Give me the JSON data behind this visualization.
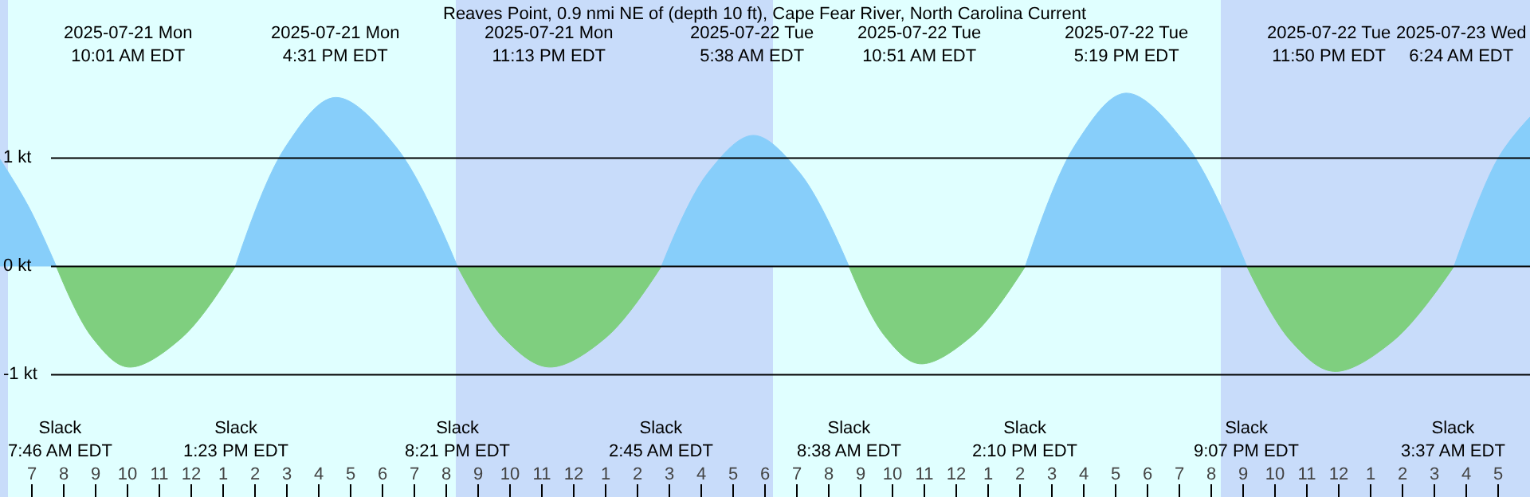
{
  "chart_data": {
    "type": "area",
    "title": "Reaves Point, 0.9 nmi NE of (depth 10 ft), Cape Fear River, North Carolina Current",
    "series": [
      {
        "color": "#87cefa",
        "x": [
          "2025-07-21T06:00",
          "2025-07-21T06:54",
          "2025-07-21T07:46",
          "2025-07-21T10:30",
          "2025-07-21T13:23",
          "2025-07-21T14:57",
          "2025-07-21T16:31",
          "2025-07-21T18:26",
          "2025-07-21T20:21",
          "2025-07-21T23:30",
          "2025-07-22T02:45",
          "2025-07-22T04:12",
          "2025-07-22T05:38",
          "2025-07-22T07:06",
          "2025-07-22T08:38",
          "2025-07-22T11:30",
          "2025-07-22T14:10",
          "2025-07-22T15:45",
          "2025-07-22T17:19",
          "2025-07-22T19:12",
          "2025-07-22T21:07",
          "2025-07-23T00:30",
          "2025-07-23T03:37",
          "2025-07-23T05:00",
          "2025-07-23T06:00"
        ],
        "values": [
          0.99,
          0.55,
          0,
          null,
          0,
          1.1,
          1.56,
          1.1,
          0,
          null,
          0,
          0.86,
          1.21,
          0.86,
          0,
          null,
          0,
          1.13,
          1.6,
          1.13,
          0,
          null,
          0,
          1.0,
          1.38
        ]
      },
      {
        "color": "#7fcf7f",
        "x": [
          "2025-07-21T07:46",
          "2025-07-21T08:54",
          "2025-07-21T10:01",
          "2025-07-21T11:42",
          "2025-07-21T13:23",
          "2025-07-21T17:00",
          "2025-07-21T20:21",
          "2025-07-21T21:48",
          "2025-07-21T23:13",
          "2025-07-22T01:00",
          "2025-07-22T02:45",
          "2025-07-22T06:00",
          "2025-07-22T08:38",
          "2025-07-22T09:45",
          "2025-07-22T10:51",
          "2025-07-22T12:30",
          "2025-07-22T14:10",
          "2025-07-22T18:00",
          "2025-07-22T21:07",
          "2025-07-22T22:30",
          "2025-07-22T23:50",
          "2025-07-23T01:42",
          "2025-07-23T03:37"
        ],
        "values": [
          0,
          -0.66,
          -0.93,
          -0.66,
          0,
          null,
          0,
          -0.66,
          -0.93,
          -0.66,
          0,
          null,
          0,
          -0.64,
          -0.9,
          -0.64,
          0,
          null,
          0,
          -0.69,
          -0.97,
          -0.69,
          0
        ]
      }
    ],
    "xlim": [
      "2025-07-21T06:00",
      "2025-07-23T06:00"
    ],
    "xticks": [
      {
        "value": "2025-07-21T07:00",
        "label": "7"
      },
      {
        "value": "2025-07-21T08:00",
        "label": "8"
      },
      {
        "value": "2025-07-21T09:00",
        "label": "9"
      },
      {
        "value": "2025-07-21T10:00",
        "label": "10"
      },
      {
        "value": "2025-07-21T11:00",
        "label": "11"
      },
      {
        "value": "2025-07-21T12:00",
        "label": "12"
      },
      {
        "value": "2025-07-21T13:00",
        "label": "1"
      },
      {
        "value": "2025-07-21T14:00",
        "label": "2"
      },
      {
        "value": "2025-07-21T15:00",
        "label": "3"
      },
      {
        "value": "2025-07-21T16:00",
        "label": "4"
      },
      {
        "value": "2025-07-21T17:00",
        "label": "5"
      },
      {
        "value": "2025-07-21T18:00",
        "label": "6"
      },
      {
        "value": "2025-07-21T19:00",
        "label": "7"
      },
      {
        "value": "2025-07-21T20:00",
        "label": "8"
      },
      {
        "value": "2025-07-21T21:00",
        "label": "9"
      },
      {
        "value": "2025-07-21T22:00",
        "label": "10"
      },
      {
        "value": "2025-07-21T23:00",
        "label": "11"
      },
      {
        "value": "2025-07-22T00:00",
        "label": "12"
      },
      {
        "value": "2025-07-22T01:00",
        "label": "1"
      },
      {
        "value": "2025-07-22T02:00",
        "label": "2"
      },
      {
        "value": "2025-07-22T03:00",
        "label": "3"
      },
      {
        "value": "2025-07-22T04:00",
        "label": "4"
      },
      {
        "value": "2025-07-22T05:00",
        "label": "5"
      },
      {
        "value": "2025-07-22T06:00",
        "label": "6"
      },
      {
        "value": "2025-07-22T07:00",
        "label": "7"
      },
      {
        "value": "2025-07-22T08:00",
        "label": "8"
      },
      {
        "value": "2025-07-22T09:00",
        "label": "9"
      },
      {
        "value": "2025-07-22T10:00",
        "label": "10"
      },
      {
        "value": "2025-07-22T11:00",
        "label": "11"
      },
      {
        "value": "2025-07-22T12:00",
        "label": "12"
      },
      {
        "value": "2025-07-22T13:00",
        "label": "1"
      },
      {
        "value": "2025-07-22T14:00",
        "label": "2"
      },
      {
        "value": "2025-07-22T15:00",
        "label": "3"
      },
      {
        "value": "2025-07-22T16:00",
        "label": "4"
      },
      {
        "value": "2025-07-22T17:00",
        "label": "5"
      },
      {
        "value": "2025-07-22T18:00",
        "label": "6"
      },
      {
        "value": "2025-07-22T19:00",
        "label": "7"
      },
      {
        "value": "2025-07-22T20:00",
        "label": "8"
      },
      {
        "value": "2025-07-22T21:00",
        "label": "9"
      },
      {
        "value": "2025-07-22T22:00",
        "label": "10"
      },
      {
        "value": "2025-07-22T23:00",
        "label": "11"
      },
      {
        "value": "2025-07-23T00:00",
        "label": "12"
      },
      {
        "value": "2025-07-23T01:00",
        "label": "1"
      },
      {
        "value": "2025-07-23T02:00",
        "label": "2"
      },
      {
        "value": "2025-07-23T03:00",
        "label": "3"
      },
      {
        "value": "2025-07-23T04:00",
        "label": "4"
      },
      {
        "value": "2025-07-23T05:00",
        "label": "5"
      }
    ],
    "ylim": [
      -2.13,
      2.46
    ],
    "yticks": [
      {
        "value": -1,
        "label": "-1 kt"
      },
      {
        "value": 0,
        "label": "0 kt"
      },
      {
        "value": 1,
        "label": "1 kt"
      }
    ],
    "grid": "y",
    "bands": [
      {
        "axis": "x",
        "from": "2025-07-21T06:00",
        "to": "2025-07-21T06:15",
        "color": "#c8dcfa"
      },
      {
        "axis": "x",
        "from": "2025-07-21T06:15",
        "to": "2025-07-21T20:18",
        "color": "#e0ffff"
      },
      {
        "axis": "x",
        "from": "2025-07-21T20:18",
        "to": "2025-07-22T06:15",
        "color": "#c8dcfa"
      },
      {
        "axis": "x",
        "from": "2025-07-22T06:15",
        "to": "2025-07-22T20:18",
        "color": "#e0ffff"
      },
      {
        "axis": "x",
        "from": "2025-07-22T20:18",
        "to": "2025-07-23T06:00",
        "color": "#c8dcfa"
      }
    ],
    "annotations": [
      "2025-07-21 Mon\n10:01 AM EDT",
      "2025-07-21 Mon\n4:31 PM EDT",
      "2025-07-21 Mon\n11:13 PM EDT",
      "2025-07-22 Tue\n5:38 AM EDT",
      "2025-07-22 Tue\n10:51 AM EDT",
      "2025-07-22 Tue\n5:19 PM EDT",
      "2025-07-22 Tue\n11:50 PM EDT",
      "2025-07-23 Wed\n6:24 AM EDT",
      "Slack\n7:46 AM EDT",
      "Slack\n1:23 PM EDT",
      "Slack\n8:21 PM EDT",
      "Slack\n2:45 AM EDT",
      "Slack\n8:38 AM EDT",
      "Slack\n2:10 PM EDT",
      "Slack\n9:07 PM EDT",
      "Slack\n3:37 AM EDT"
    ]
  }
}
